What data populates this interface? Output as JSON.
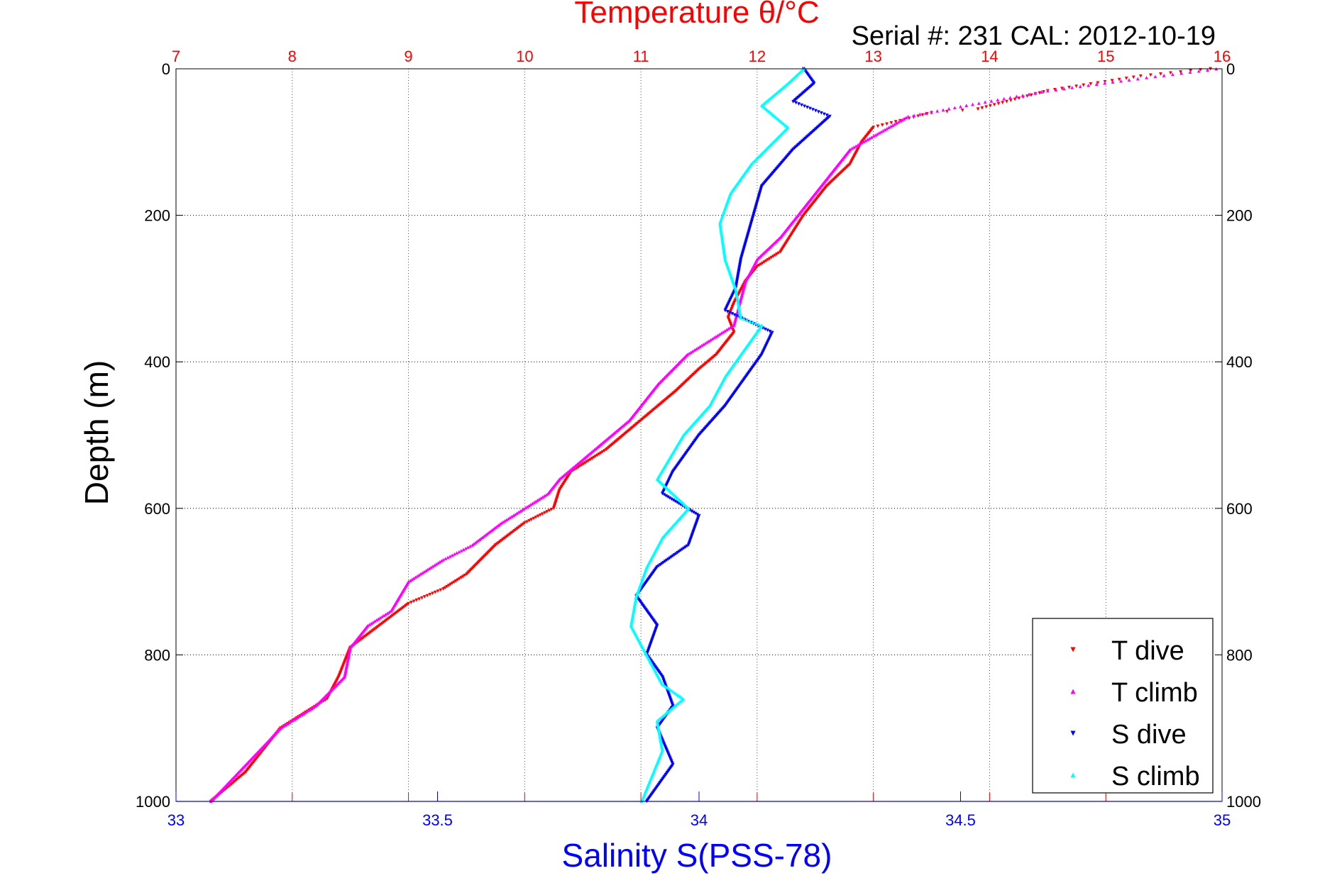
{
  "chart_data": {
    "type": "scatter",
    "title": "Temperature θ/°C",
    "subtitle": "Serial #: 231  CAL: 2012-10-19",
    "ylabel": "Depth (m)",
    "xlabel": "Salinity S(PSS-78)",
    "ylim": [
      0,
      1000
    ],
    "y_reversed": true,
    "xlim_temperature": [
      7,
      16
    ],
    "xlim_salinity": [
      33,
      35
    ],
    "yticks": [
      "0",
      "200",
      "400",
      "600",
      "800",
      "1000"
    ],
    "yticks_right": [
      "0",
      "200",
      "400",
      "600",
      "800",
      "1000"
    ],
    "xticks_temperature": [
      "7",
      "8",
      "9",
      "10",
      "11",
      "12",
      "13",
      "14",
      "15",
      "16"
    ],
    "xticks_salinity": [
      "33",
      "33.5",
      "34",
      "34.5",
      "35"
    ],
    "grid": true,
    "legend_position": "bottom-right",
    "colors": {
      "t_dive": "#ff0000",
      "t_climb": "#ff00ff",
      "s_dive": "#0000ff",
      "s_climb": "#00ffff",
      "temperature_axis": "#ff0000",
      "salinity_axis": "#0000ff"
    },
    "series": [
      {
        "name": "T dive",
        "axis": "temperature",
        "marker": "triangle-down",
        "points": [
          [
            15.9,
            0
          ],
          [
            15.3,
            10
          ],
          [
            14.5,
            30
          ],
          [
            13.9,
            55
          ],
          [
            13.5,
            60
          ],
          [
            13.0,
            80
          ],
          [
            12.9,
            100
          ],
          [
            12.8,
            130
          ],
          [
            12.6,
            160
          ],
          [
            12.4,
            200
          ],
          [
            12.2,
            250
          ],
          [
            12.0,
            270
          ],
          [
            11.9,
            290
          ],
          [
            11.8,
            320
          ],
          [
            11.75,
            340
          ],
          [
            11.8,
            360
          ],
          [
            11.65,
            390
          ],
          [
            11.5,
            410
          ],
          [
            11.3,
            440
          ],
          [
            11.0,
            480
          ],
          [
            10.7,
            520
          ],
          [
            10.4,
            550
          ],
          [
            10.3,
            575
          ],
          [
            10.25,
            600
          ],
          [
            10.0,
            620
          ],
          [
            9.75,
            650
          ],
          [
            9.5,
            690
          ],
          [
            9.3,
            710
          ],
          [
            9.0,
            730
          ],
          [
            8.75,
            760
          ],
          [
            8.5,
            790
          ],
          [
            8.4,
            830
          ],
          [
            8.3,
            860
          ],
          [
            8.1,
            880
          ],
          [
            7.9,
            900
          ],
          [
            7.6,
            960
          ],
          [
            7.3,
            1000
          ]
        ]
      },
      {
        "name": "T climb",
        "axis": "temperature",
        "marker": "triangle-up",
        "points": [
          [
            15.95,
            0
          ],
          [
            15.2,
            15
          ],
          [
            14.5,
            30
          ],
          [
            13.8,
            50
          ],
          [
            13.3,
            65
          ],
          [
            12.8,
            110
          ],
          [
            12.5,
            170
          ],
          [
            12.2,
            230
          ],
          [
            12.0,
            260
          ],
          [
            11.9,
            290
          ],
          [
            11.8,
            350
          ],
          [
            11.6,
            370
          ],
          [
            11.4,
            390
          ],
          [
            11.15,
            430
          ],
          [
            10.9,
            480
          ],
          [
            10.6,
            520
          ],
          [
            10.3,
            560
          ],
          [
            10.2,
            580
          ],
          [
            9.8,
            620
          ],
          [
            9.55,
            650
          ],
          [
            9.3,
            670
          ],
          [
            9.0,
            700
          ],
          [
            8.85,
            740
          ],
          [
            8.65,
            760
          ],
          [
            8.5,
            790
          ],
          [
            8.45,
            830
          ],
          [
            8.2,
            870
          ],
          [
            7.9,
            900
          ],
          [
            7.6,
            950
          ],
          [
            7.3,
            1000
          ]
        ]
      },
      {
        "name": "S dive",
        "axis": "salinity",
        "marker": "triangle-down",
        "points": [
          [
            34.2,
            0
          ],
          [
            34.22,
            20
          ],
          [
            34.18,
            45
          ],
          [
            34.25,
            65
          ],
          [
            34.18,
            110
          ],
          [
            34.12,
            160
          ],
          [
            34.1,
            210
          ],
          [
            34.08,
            260
          ],
          [
            34.07,
            300
          ],
          [
            34.05,
            330
          ],
          [
            34.14,
            360
          ],
          [
            34.12,
            390
          ],
          [
            34.08,
            430
          ],
          [
            34.05,
            460
          ],
          [
            34.0,
            500
          ],
          [
            33.95,
            550
          ],
          [
            33.93,
            580
          ],
          [
            34.0,
            610
          ],
          [
            33.98,
            650
          ],
          [
            33.92,
            680
          ],
          [
            33.88,
            720
          ],
          [
            33.92,
            760
          ],
          [
            33.9,
            800
          ],
          [
            33.93,
            830
          ],
          [
            33.95,
            870
          ],
          [
            33.92,
            900
          ],
          [
            33.95,
            950
          ],
          [
            33.9,
            1000
          ]
        ]
      },
      {
        "name": "S climb",
        "axis": "salinity",
        "marker": "triangle-up",
        "points": [
          [
            34.2,
            0
          ],
          [
            34.17,
            20
          ],
          [
            34.12,
            50
          ],
          [
            34.17,
            80
          ],
          [
            34.1,
            130
          ],
          [
            34.06,
            170
          ],
          [
            34.04,
            210
          ],
          [
            34.05,
            260
          ],
          [
            34.07,
            300
          ],
          [
            34.08,
            340
          ],
          [
            34.12,
            350
          ],
          [
            34.08,
            390
          ],
          [
            34.05,
            420
          ],
          [
            34.02,
            460
          ],
          [
            33.97,
            500
          ],
          [
            33.92,
            560
          ],
          [
            33.98,
            600
          ],
          [
            33.93,
            640
          ],
          [
            33.9,
            680
          ],
          [
            33.88,
            720
          ],
          [
            33.87,
            760
          ],
          [
            33.9,
            800
          ],
          [
            33.93,
            840
          ],
          [
            33.97,
            860
          ],
          [
            33.92,
            890
          ],
          [
            33.93,
            930
          ],
          [
            33.89,
            1000
          ]
        ]
      }
    ]
  }
}
